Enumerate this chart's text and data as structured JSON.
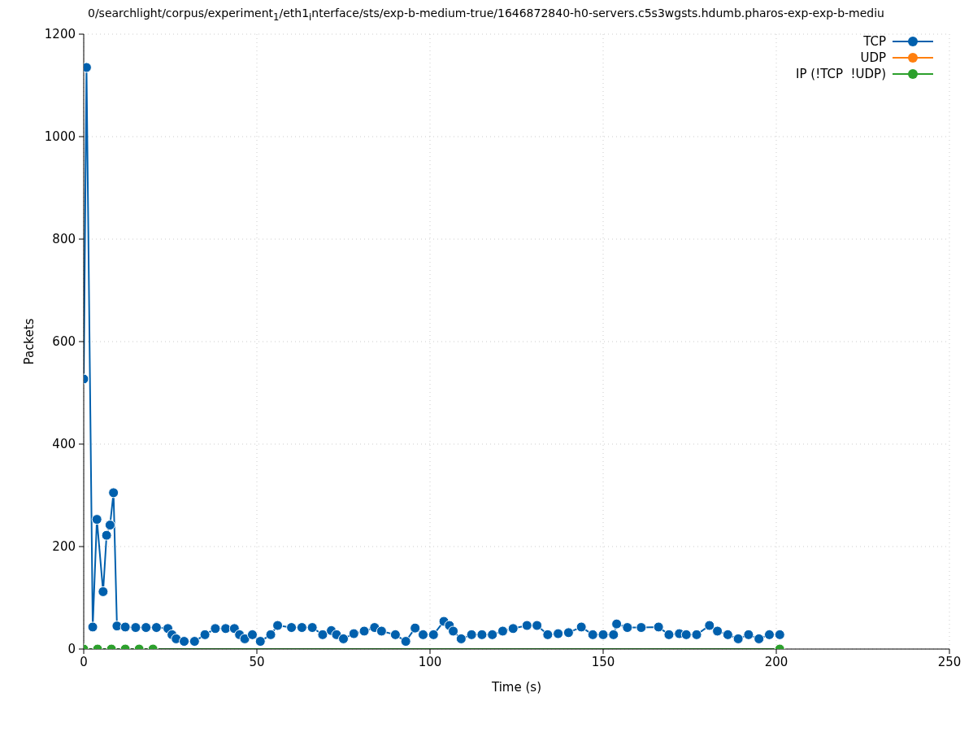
{
  "chart_data": {
    "type": "line",
    "title": "0/searchlight/corpus/experiment$_{1}$/eth1$_{i}$nterface/sts/exp-b-medium-true/1646872840-h0-servers.c5s3wgsts.hdumb.pharos-exp-exp-b-mediu",
    "xlabel": "Time (s)",
    "ylabel": "Packets",
    "xlim": [
      0,
      250
    ],
    "xticks": [
      0,
      50,
      100,
      150,
      200,
      250
    ],
    "ylim": [
      0,
      1200
    ],
    "yticks": [
      0,
      200,
      400,
      600,
      800,
      1000,
      1200
    ],
    "grid": true,
    "legend": "top right",
    "marker": "circle",
    "line_style": "solid",
    "series": [
      {
        "name": "TCP",
        "color": "#0060ad",
        "x": [
          0,
          0.8,
          2.6,
          3.8,
          5.6,
          6.6,
          7.6,
          8.6,
          9.6,
          12,
          15,
          18,
          21,
          24.3,
          25.5,
          26.7,
          29,
          32,
          35,
          38,
          41,
          43.5,
          45,
          46.5,
          48.7,
          51,
          54,
          56,
          60,
          63,
          66,
          69,
          71.5,
          73,
          75,
          78,
          81,
          84,
          86,
          90,
          93,
          95.7,
          98,
          101,
          104,
          105.6,
          106.7,
          109,
          112,
          115,
          118,
          121,
          124,
          128,
          130.9,
          134,
          137,
          140,
          143.7,
          147,
          150,
          153,
          153.9,
          157,
          161,
          166,
          169,
          172,
          174,
          177,
          180.7,
          183,
          186,
          189,
          192,
          195,
          198,
          201
        ],
        "values": [
          527,
          1135,
          43,
          253,
          112,
          222,
          242,
          305,
          45,
          43,
          42,
          42,
          42,
          40,
          28,
          20,
          15,
          15,
          28,
          40,
          40,
          40,
          28,
          20,
          28,
          15,
          28,
          46,
          42,
          42,
          42,
          28,
          36,
          28,
          20,
          30,
          35,
          42,
          35,
          28,
          15,
          41,
          28,
          28,
          54,
          46,
          35,
          20,
          28,
          28,
          28,
          35,
          40,
          46,
          46,
          28,
          30,
          32,
          43,
          28,
          28,
          28,
          49,
          42,
          42,
          43,
          28,
          30,
          28,
          28,
          46,
          35,
          28,
          20,
          28,
          20,
          28,
          28
        ]
      },
      {
        "name": "UDP",
        "color": "#ff7f0e"
      },
      {
        "name": "IP (!TCP  !UDP)",
        "color": "#2ca02c",
        "x": [
          0,
          4,
          8,
          12,
          16,
          20,
          201
        ],
        "values": [
          0,
          0,
          0,
          0,
          0,
          0,
          0
        ]
      }
    ]
  }
}
